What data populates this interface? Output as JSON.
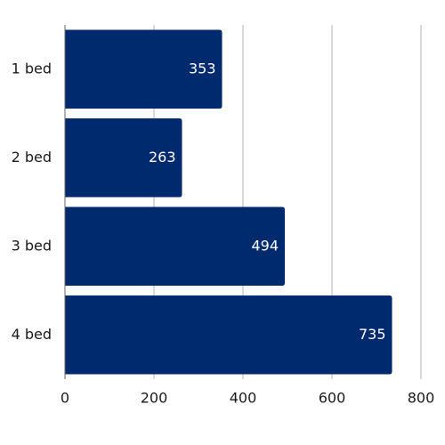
{
  "chart_data": {
    "type": "bar",
    "orientation": "horizontal",
    "categories": [
      "1 bed",
      "2 bed",
      "3 bed",
      "4 bed"
    ],
    "values": [
      353,
      263,
      494,
      735
    ],
    "xlim": [
      0,
      800
    ],
    "x_ticks": [
      0,
      200,
      400,
      600,
      800
    ],
    "x_tick_labels": [
      "0",
      "200",
      "400",
      "600",
      "800"
    ],
    "data_labels": [
      "353",
      "263",
      "494",
      "735"
    ],
    "title": "",
    "xlabel": "",
    "ylabel": "",
    "grid": "vertical",
    "legend": "none",
    "bar_color": "#002a6e",
    "label_color": "#ffffff"
  }
}
